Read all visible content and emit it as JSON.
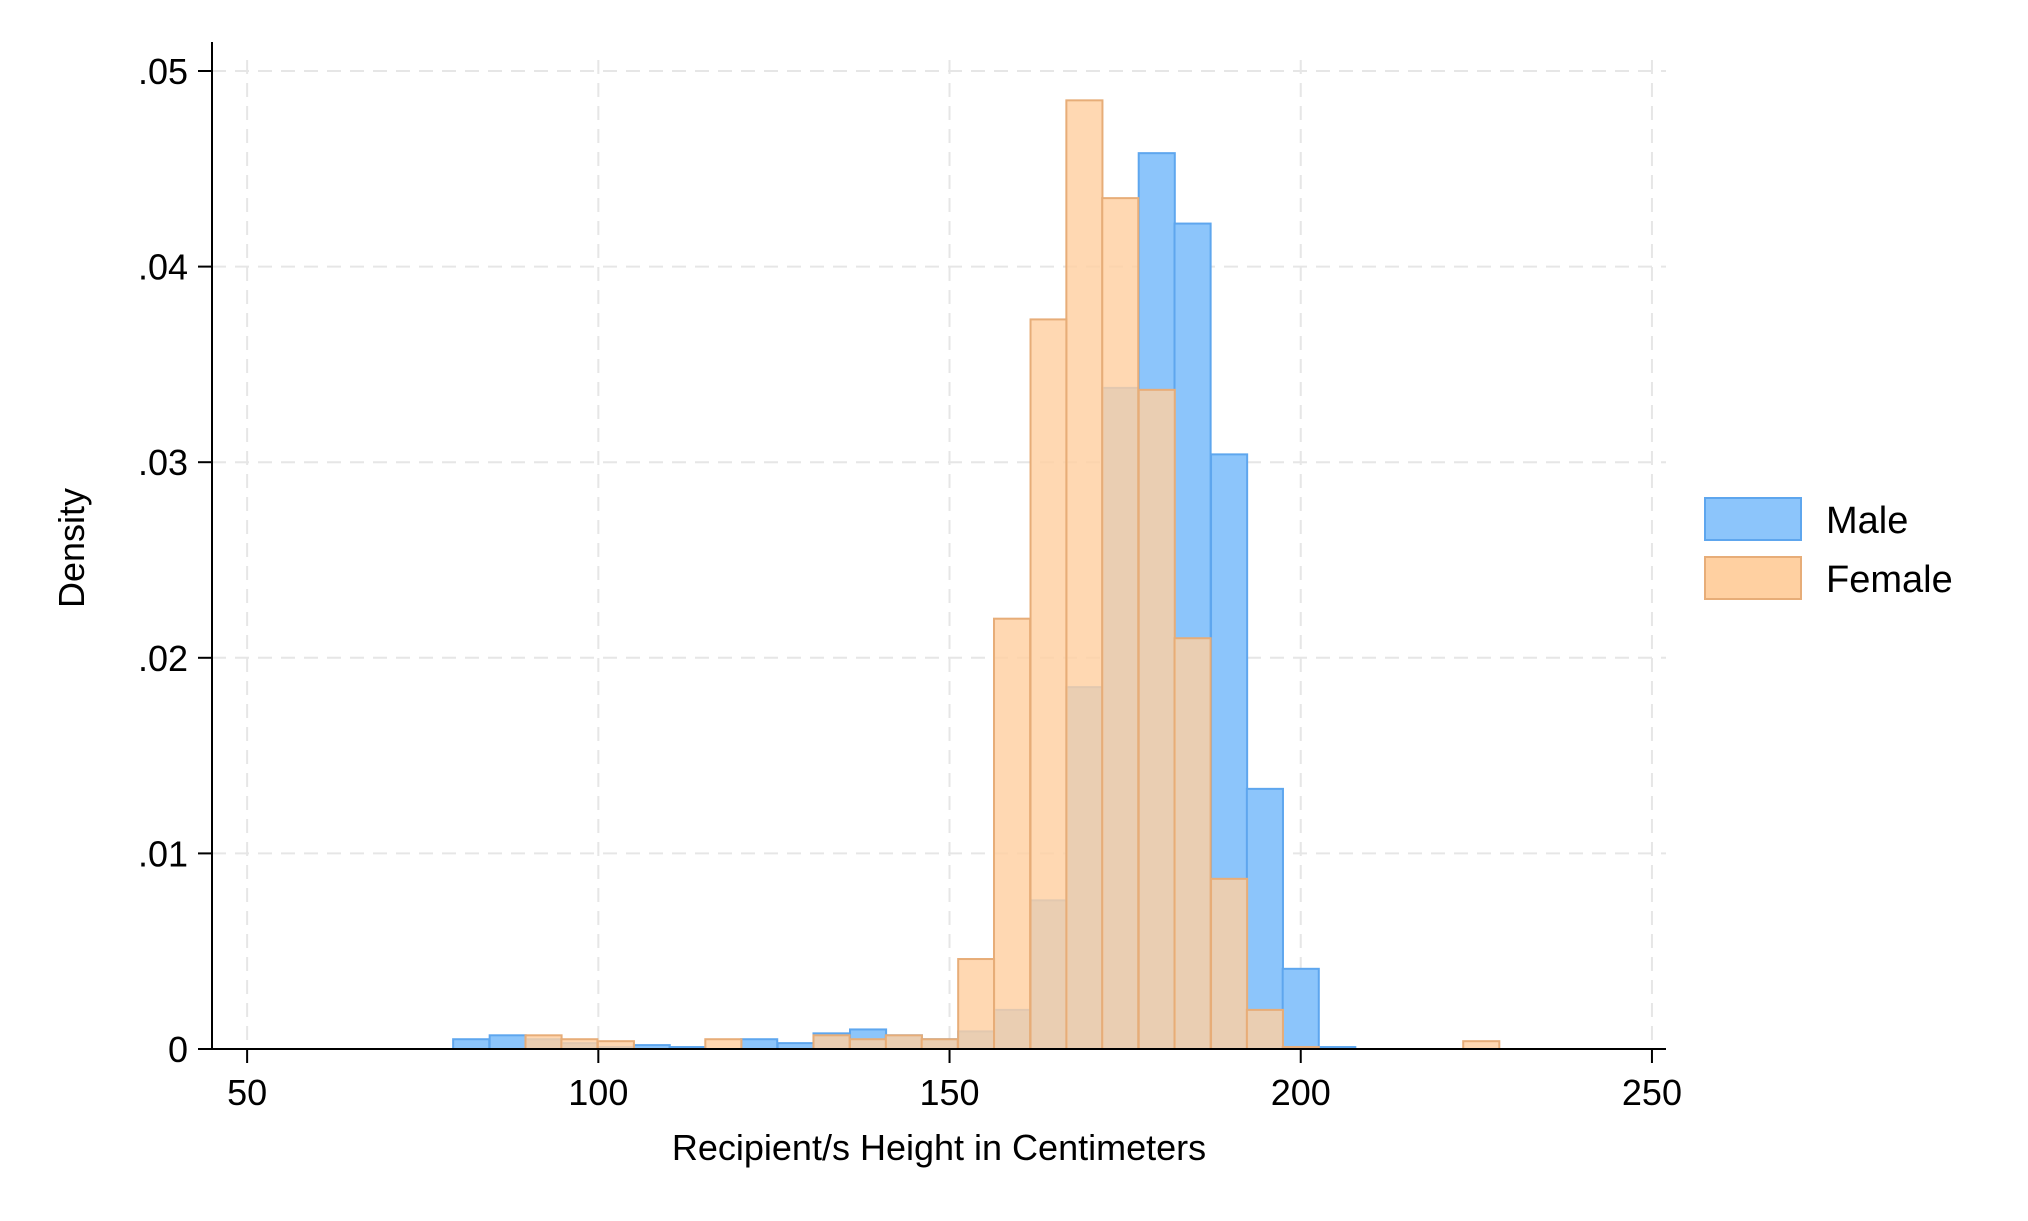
{
  "chart_data": {
    "type": "histogram",
    "title": "",
    "xlabel": "Recipient/s Height in Centimeters",
    "ylabel": "Density",
    "xlim": [
      45,
      252
    ],
    "ylim": [
      0,
      0.05
    ],
    "x_ticks": [
      50,
      100,
      150,
      200,
      250
    ],
    "x_tick_labels": [
      "50",
      "100",
      "150",
      "200",
      "250"
    ],
    "y_ticks": [
      0,
      0.01,
      0.02,
      0.03,
      0.04,
      0.05
    ],
    "y_tick_labels": [
      "0",
      ".01",
      ".02",
      ".03",
      ".04",
      ".05"
    ],
    "grid": true,
    "legend_position": "right",
    "bin_width": 5.14,
    "series": [
      {
        "name": "Male",
        "color": "#8cc5fb",
        "edge_color": "#5ea6ee",
        "bins": [
          {
            "x": 81.9,
            "density": 0.0005
          },
          {
            "x": 87.1,
            "density": 0.0007
          },
          {
            "x": 92.2,
            "density": 0.0005
          },
          {
            "x": 97.3,
            "density": 0.0003
          },
          {
            "x": 102.5,
            "density": 0.0001
          },
          {
            "x": 107.6,
            "density": 0.0002
          },
          {
            "x": 112.7,
            "density": 0.0001
          },
          {
            "x": 122.9,
            "density": 0.0005
          },
          {
            "x": 128.1,
            "density": 0.0003
          },
          {
            "x": 133.2,
            "density": 0.0008
          },
          {
            "x": 138.4,
            "density": 0.001
          },
          {
            "x": 143.5,
            "density": 0.0007
          },
          {
            "x": 148.6,
            "density": 0.0005
          },
          {
            "x": 153.8,
            "density": 0.0009
          },
          {
            "x": 158.9,
            "density": 0.002
          },
          {
            "x": 164.1,
            "density": 0.0076
          },
          {
            "x": 169.2,
            "density": 0.0185
          },
          {
            "x": 174.3,
            "density": 0.0338
          },
          {
            "x": 179.5,
            "density": 0.0458
          },
          {
            "x": 184.6,
            "density": 0.0422
          },
          {
            "x": 189.8,
            "density": 0.0304
          },
          {
            "x": 194.9,
            "density": 0.0133
          },
          {
            "x": 200.0,
            "density": 0.0041
          },
          {
            "x": 205.2,
            "density": 0.0001
          }
        ]
      },
      {
        "name": "Female",
        "color": "#ffd0a1",
        "edge_color": "#e7ad78",
        "bins": [
          {
            "x": 92.2,
            "density": 0.0007
          },
          {
            "x": 97.3,
            "density": 0.0005
          },
          {
            "x": 102.5,
            "density": 0.0004
          },
          {
            "x": 117.8,
            "density": 0.0005
          },
          {
            "x": 133.2,
            "density": 0.0007
          },
          {
            "x": 138.4,
            "density": 0.0005
          },
          {
            "x": 143.5,
            "density": 0.0007
          },
          {
            "x": 148.6,
            "density": 0.0005
          },
          {
            "x": 153.8,
            "density": 0.0046
          },
          {
            "x": 158.9,
            "density": 0.022
          },
          {
            "x": 164.1,
            "density": 0.0373
          },
          {
            "x": 169.2,
            "density": 0.0485
          },
          {
            "x": 174.3,
            "density": 0.0435
          },
          {
            "x": 179.5,
            "density": 0.0337
          },
          {
            "x": 184.6,
            "density": 0.021
          },
          {
            "x": 189.8,
            "density": 0.0087
          },
          {
            "x": 194.9,
            "density": 0.002
          },
          {
            "x": 200.0,
            "density": 0.0001
          },
          {
            "x": 225.7,
            "density": 0.0004
          }
        ]
      }
    ]
  }
}
